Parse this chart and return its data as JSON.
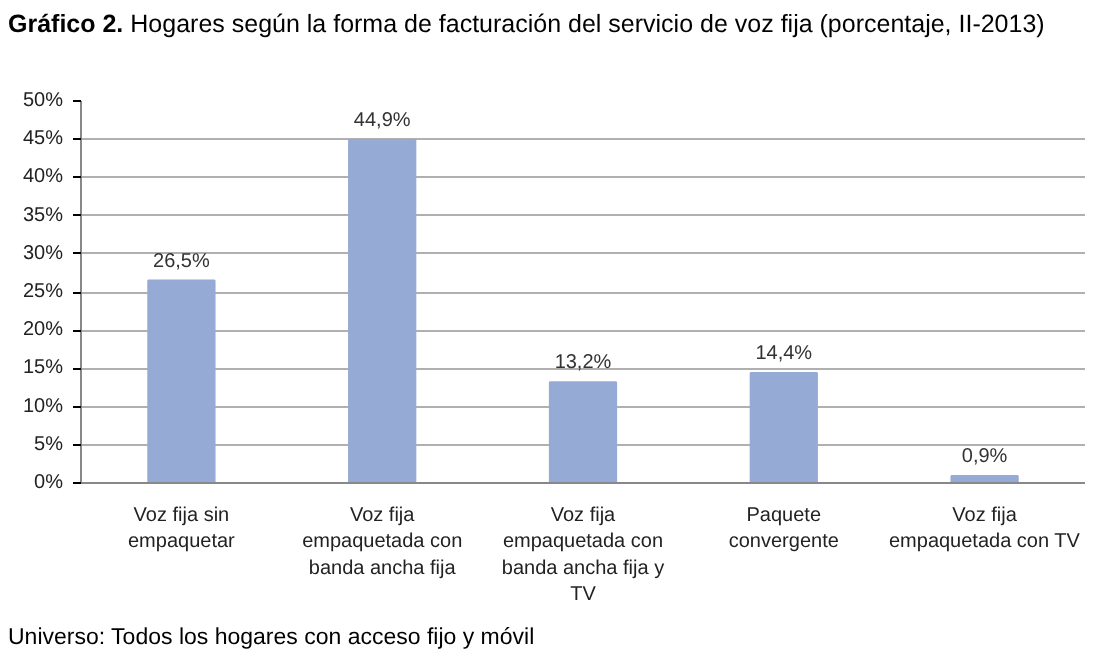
{
  "chart_data": {
    "type": "bar",
    "title": "Gráfico 2.",
    "subtitle": "Hogares según la forma de facturación del servicio de voz fija (porcentaje, II-2013)",
    "categories": [
      "Voz fija sin empaquetar",
      "Voz fija empaquetada con banda ancha fija",
      "Voz fija empaquetada con banda ancha fija y TV",
      "Paquete convergente",
      "Voz fija empaquetada con TV"
    ],
    "values": [
      26.5,
      44.9,
      13.2,
      14.4,
      0.9
    ],
    "value_labels": [
      "26,5%",
      "44,9%",
      "13,2%",
      "14,4%",
      "0,9%"
    ],
    "color": "#95aad4",
    "ylim": [
      0,
      50
    ],
    "yticks": [
      {
        "value": 0,
        "label": "0%"
      },
      {
        "value": 5,
        "label": "5%"
      },
      {
        "value": 10,
        "label": "10%"
      },
      {
        "value": 15,
        "label": "15%"
      },
      {
        "value": 20,
        "label": "20%"
      },
      {
        "value": 25,
        "label": "25%"
      },
      {
        "value": 30,
        "label": "30%"
      },
      {
        "value": 35,
        "label": "35%"
      },
      {
        "value": 40,
        "label": "40%"
      },
      {
        "value": 45,
        "label": "45%"
      },
      {
        "value": 50,
        "label": "50%"
      }
    ],
    "grid": "y",
    "annotations": [
      "Universo: Todos los hogares con acceso fijo y móvil"
    ]
  }
}
